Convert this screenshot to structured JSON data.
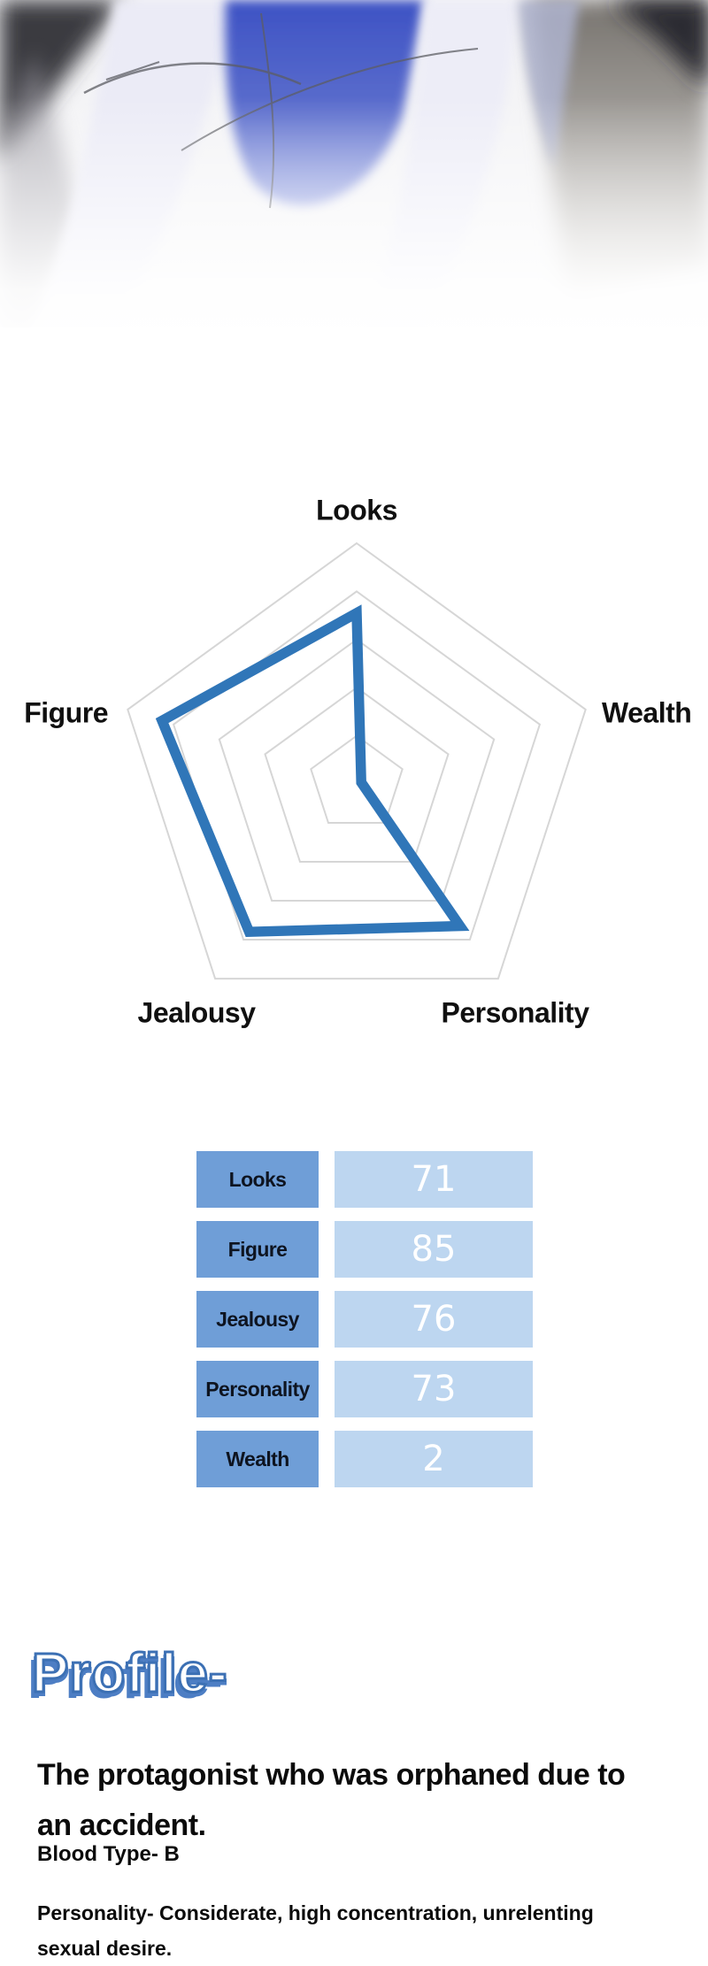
{
  "colors": {
    "accent": "#3076b8",
    "grid": "#d6d6d6",
    "label_bg": "#6f9ed7",
    "value_bg": "#bdd6f0",
    "heading": "#3c70b4",
    "heading_shadow": "#4d7ec4",
    "text": "#0c0c0c"
  },
  "chart_data": {
    "type": "radar",
    "categories": [
      "Looks",
      "Wealth",
      "Personality",
      "Jealousy",
      "Figure"
    ],
    "values": [
      71,
      2,
      73,
      76,
      85
    ],
    "max": 100,
    "rings": 5,
    "grid_color": "#d6d6d6",
    "series_color": "#3076b8",
    "legend": "none",
    "title": ""
  },
  "stats": {
    "rows": [
      {
        "label": "Looks",
        "value": 71
      },
      {
        "label": "Figure",
        "value": 85
      },
      {
        "label": "Jealousy",
        "value": 76
      },
      {
        "label": "Personality",
        "value": 73
      },
      {
        "label": "Wealth",
        "value": 2
      }
    ]
  },
  "profile": {
    "heading": "Profile-",
    "bio_lines": [
      "The protagonist who was orphaned due to",
      "an accident."
    ],
    "blood_type": "Blood Type- B",
    "personality_lines": [
      "Personality- Considerate, high concentration, unrelenting",
      "sexual desire."
    ]
  }
}
